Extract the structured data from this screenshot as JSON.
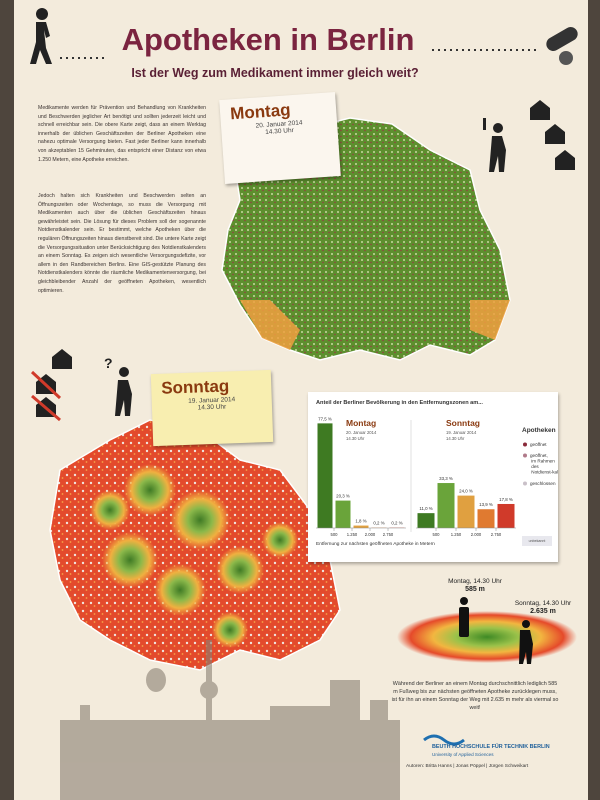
{
  "header": {
    "title": "Apotheken in Berlin",
    "subtitle": "Ist der Weg zum Medikament immer gleich weit?"
  },
  "intro": [
    "Medikamente werden für Prävention und Behandlung von Krankheiten und Beschwerden jeglicher Art benötigt und sollten jederzeit leicht und schnell erreichbar sein. Die obere Karte zeigt, dass an einem Werktag innerhalb der üblichen Geschäftszeiten der Berliner Apotheken eine nahezu optimale Versorgung bieten. Fast jeder Berliner kann innerhalb von akzeptablen 15 Gehminuten, das entspricht einer Distanz von etwa 1.250 Metern, eine Apotheke erreichen.",
    "Jedoch halten sich Krankheiten und Beschwerden selten an Öffnungszeiten oder Wochentage, so muss die Versorgung mit Medikamenten auch über die üblichen Geschäftszeiten hinaus gewährleistet sein. Die Lösung für dieses Problem soll der sogenannte Notdienstkalender sein. Er bestimmt, welche Apotheken über die regulären Öffnungszeiten hinaus dienstbereit sind. Die untere Karte zeigt die Versorgungssituation unter Berücksichtigung des Notdienstkalenders an einem Sonntag. Es zeigen sich wesentliche Versorgungsdefizite, vor allem in den Randbereichen Berlins. Eine GIS-gestützte Planung des Notdienstkalenders könnte die räumliche Medikamentenversorgung, bei gleichbleibender Anzahl der geöffneten Apotheken, wesentlich optimieren."
  ],
  "maps": [
    {
      "day": "Montag",
      "date": "20. Januar 2014",
      "time": "14.30 Uhr"
    },
    {
      "day": "Sonntag",
      "date": "19. Januar 2014",
      "time": "14.30 Uhr"
    }
  ],
  "chart_data": {
    "type": "bar",
    "title": "Anteil der Berliner Bevölkerung in den Entfernungszonen am...",
    "x_label": "Entfernung zur nächsten geöffneten Apotheke in Metern",
    "ylim": [
      0,
      80
    ],
    "xticks": [
      {
        "value": 1,
        "label": "500"
      },
      {
        "value": 2,
        "label": "1.250"
      },
      {
        "value": 3,
        "label": "2.000"
      },
      {
        "value": 4,
        "label": "2.750"
      }
    ],
    "series": [
      {
        "name": "Montag",
        "date": "20. Januar 2014",
        "time": "14.30 Uhr",
        "values": [
          77.5,
          20.3,
          1.8,
          0.2,
          0.2
        ],
        "value_labels": [
          "77,5 %",
          "20,3 %",
          "1,8 %",
          "0,2 %",
          "0,2 %"
        ],
        "colors": [
          "#3e7a22",
          "#6aa43a",
          "#e0a040",
          "#e07a30",
          "#d03a2a"
        ]
      },
      {
        "name": "Sonntag",
        "date": "19. Januar 2014",
        "time": "14.30 Uhr",
        "values": [
          11.0,
          33.3,
          24.0,
          13.9,
          17.8
        ],
        "value_labels": [
          "11,0 %",
          "33,3 %",
          "24,0 %",
          "13,9 %",
          "17,8 %"
        ],
        "colors": [
          "#3e7a22",
          "#6aa43a",
          "#e0a040",
          "#e07a30",
          "#d03a2a"
        ]
      }
    ],
    "legend": {
      "title": "Apotheken",
      "items": [
        {
          "label": "geöffnet",
          "color": "#8a2a3a"
        },
        {
          "label": "geöffnet, im Rahmen des Notdienst-kalenders",
          "color": "#b07a8a"
        },
        {
          "label": "geschlossen",
          "color": "#c9c0c8"
        }
      ],
      "note": "unbekannt"
    }
  },
  "comparison": {
    "monday_label": "Montag, 14.30 Uhr",
    "monday_value": "585 m",
    "sunday_label": "Sonntag, 14.30 Uhr",
    "sunday_value": "2.635 m"
  },
  "summary": "Während der Berliner an einem Montag durchschnittlich lediglich 585 m Fußweg bis zur nächsten geöffneten Apotheke zurücklegen muss, ist für ihn an einem Sonntag der Weg mit 2.635 m mehr als viermal so weit!",
  "footer": {
    "institution": "BEUTH HOCHSCHULE FÜR TECHNIK BERLIN",
    "institution_sub": "University of Applied Sciences",
    "authors": "Autoren: Britta Hanns | Jonas Pöppel | Jürgen Schweikart"
  }
}
